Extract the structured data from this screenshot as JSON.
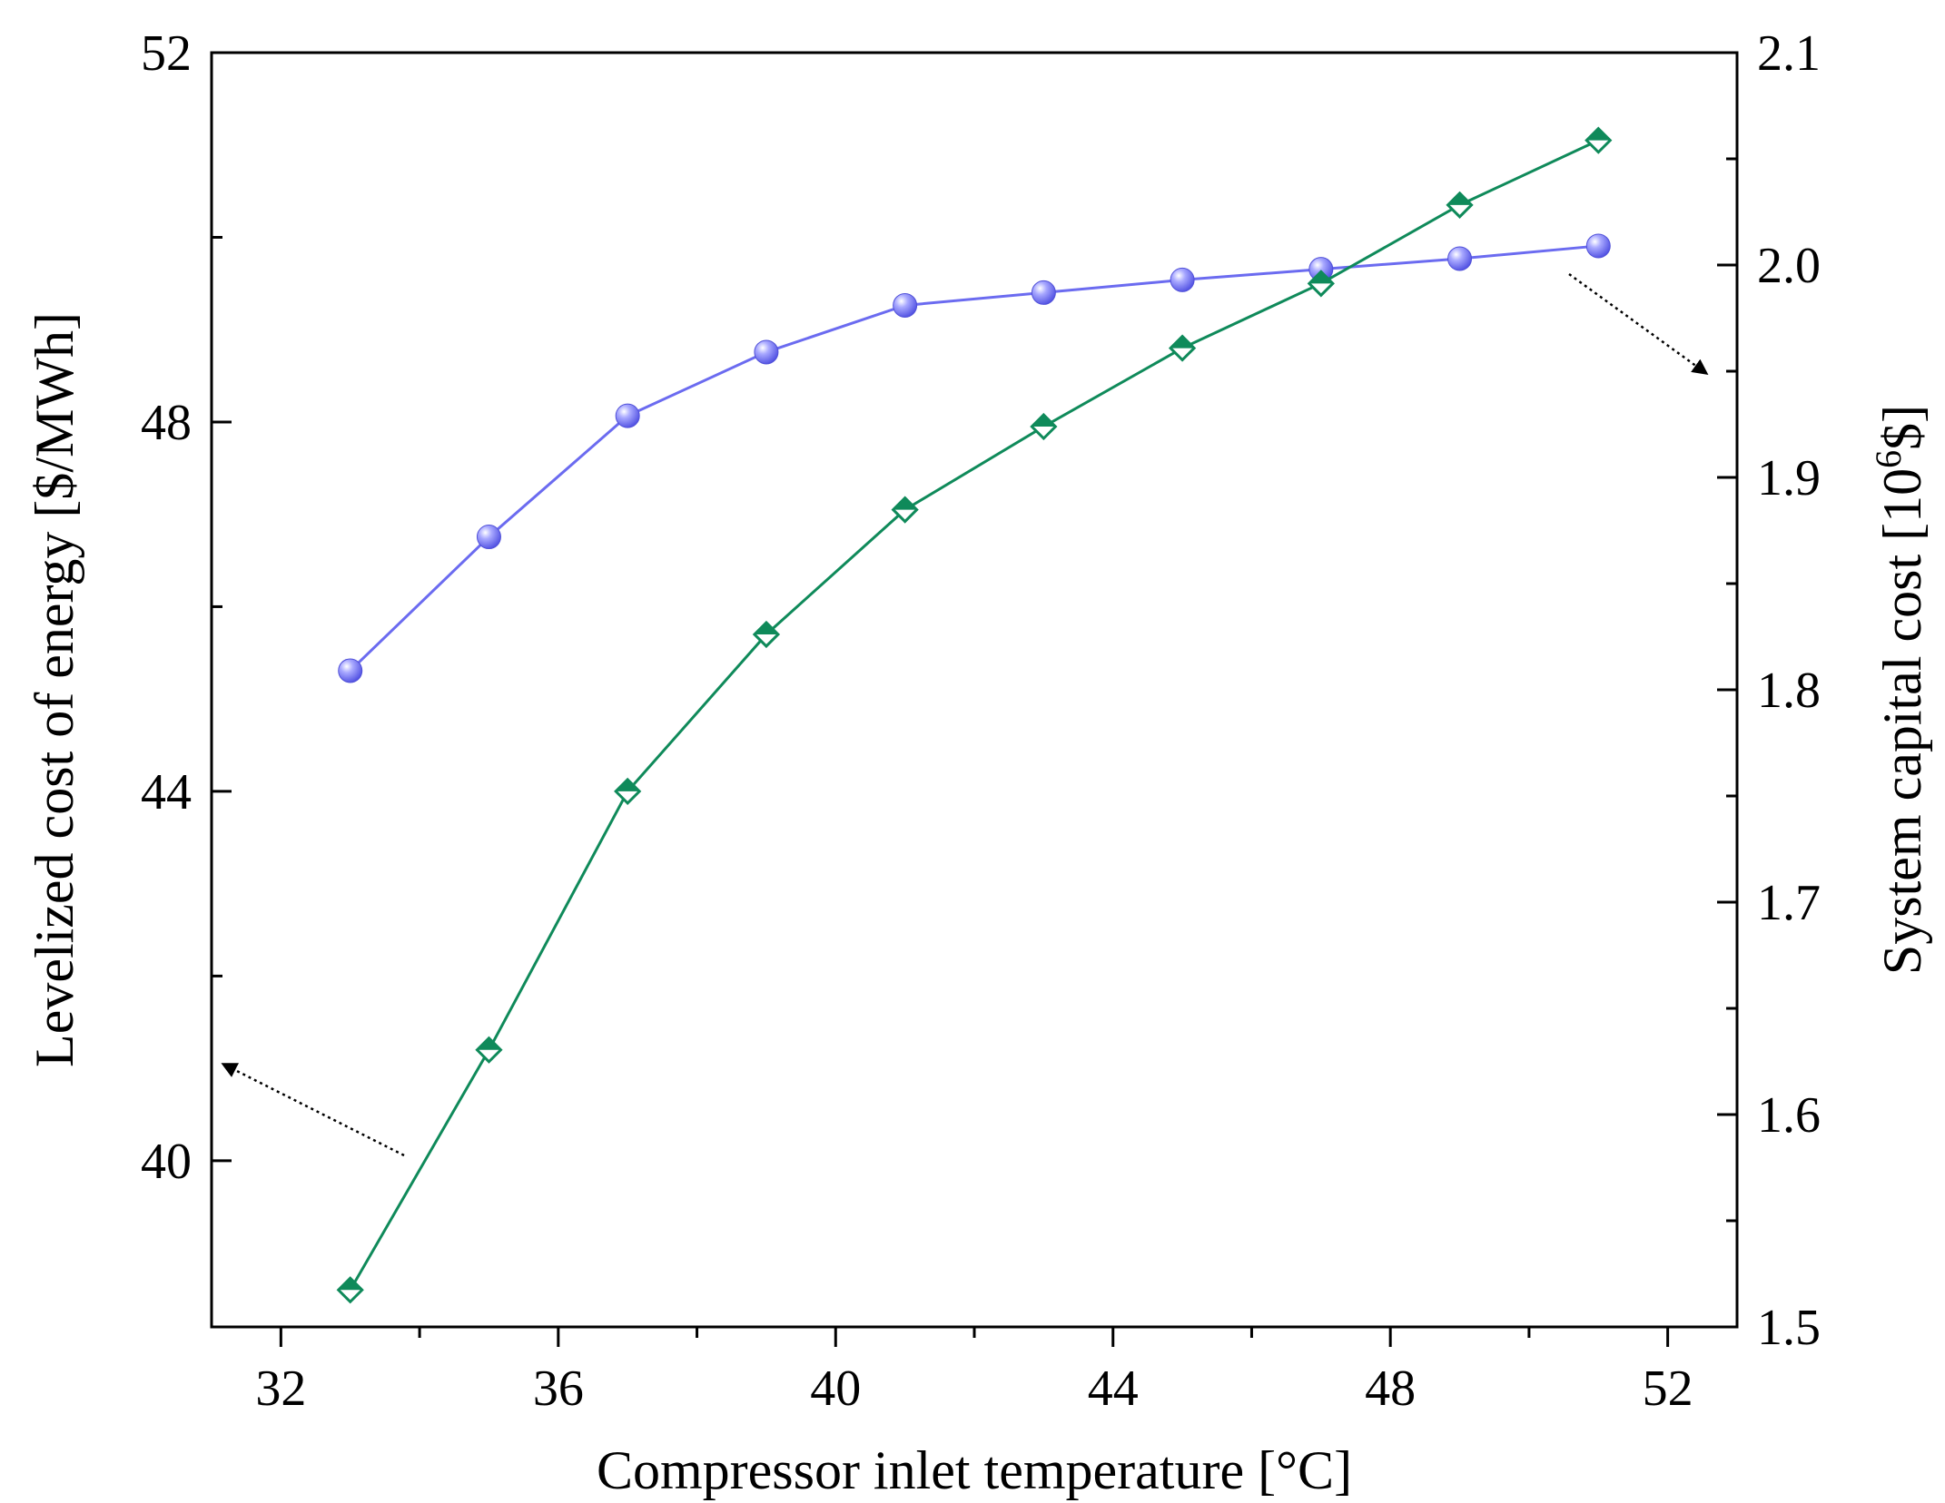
{
  "chart_data": {
    "type": "line",
    "title": "",
    "xlabel": "Compressor inlet temperature [°C]",
    "ylabel_left": "Levelized cost of energy [$/MWh]",
    "ylabel_right_prefix": "System capital cost [10",
    "ylabel_right_sup": "6",
    "ylabel_right_suffix": "$]",
    "xlim": [
      31,
      53
    ],
    "ylim_left": [
      38.2,
      52
    ],
    "ylim_right": [
      1.5,
      2.1
    ],
    "xticks": [
      32,
      36,
      40,
      44,
      48,
      52
    ],
    "yticks_left": [
      40,
      44,
      48,
      52
    ],
    "yticks_right": [
      1.5,
      1.6,
      1.7,
      1.8,
      1.9,
      2.0,
      2.1
    ],
    "ytick_labels_right": [
      "1.5",
      "1.6",
      "1.7",
      "1.8",
      "1.9",
      "2.0",
      "2.1"
    ],
    "grid": false,
    "series": [
      {
        "name": "System capital cost",
        "axis": "right",
        "marker": "sphere",
        "color": "#6b6bf0",
        "x": [
          33,
          35,
          37,
          39,
          41,
          43,
          45,
          47,
          49,
          51
        ],
        "values": [
          1.809,
          1.872,
          1.929,
          1.959,
          1.981,
          1.987,
          1.993,
          1.998,
          2.003,
          2.009
        ]
      },
      {
        "name": "Levelized cost of energy",
        "axis": "left",
        "marker": "diamond",
        "color": "#0f8a5a",
        "x": [
          33,
          35,
          37,
          39,
          41,
          43,
          45,
          47,
          49,
          51
        ],
        "values": [
          38.6,
          41.2,
          44.0,
          45.7,
          47.05,
          47.95,
          48.8,
          49.5,
          50.35,
          51.05
        ]
      }
    ]
  }
}
